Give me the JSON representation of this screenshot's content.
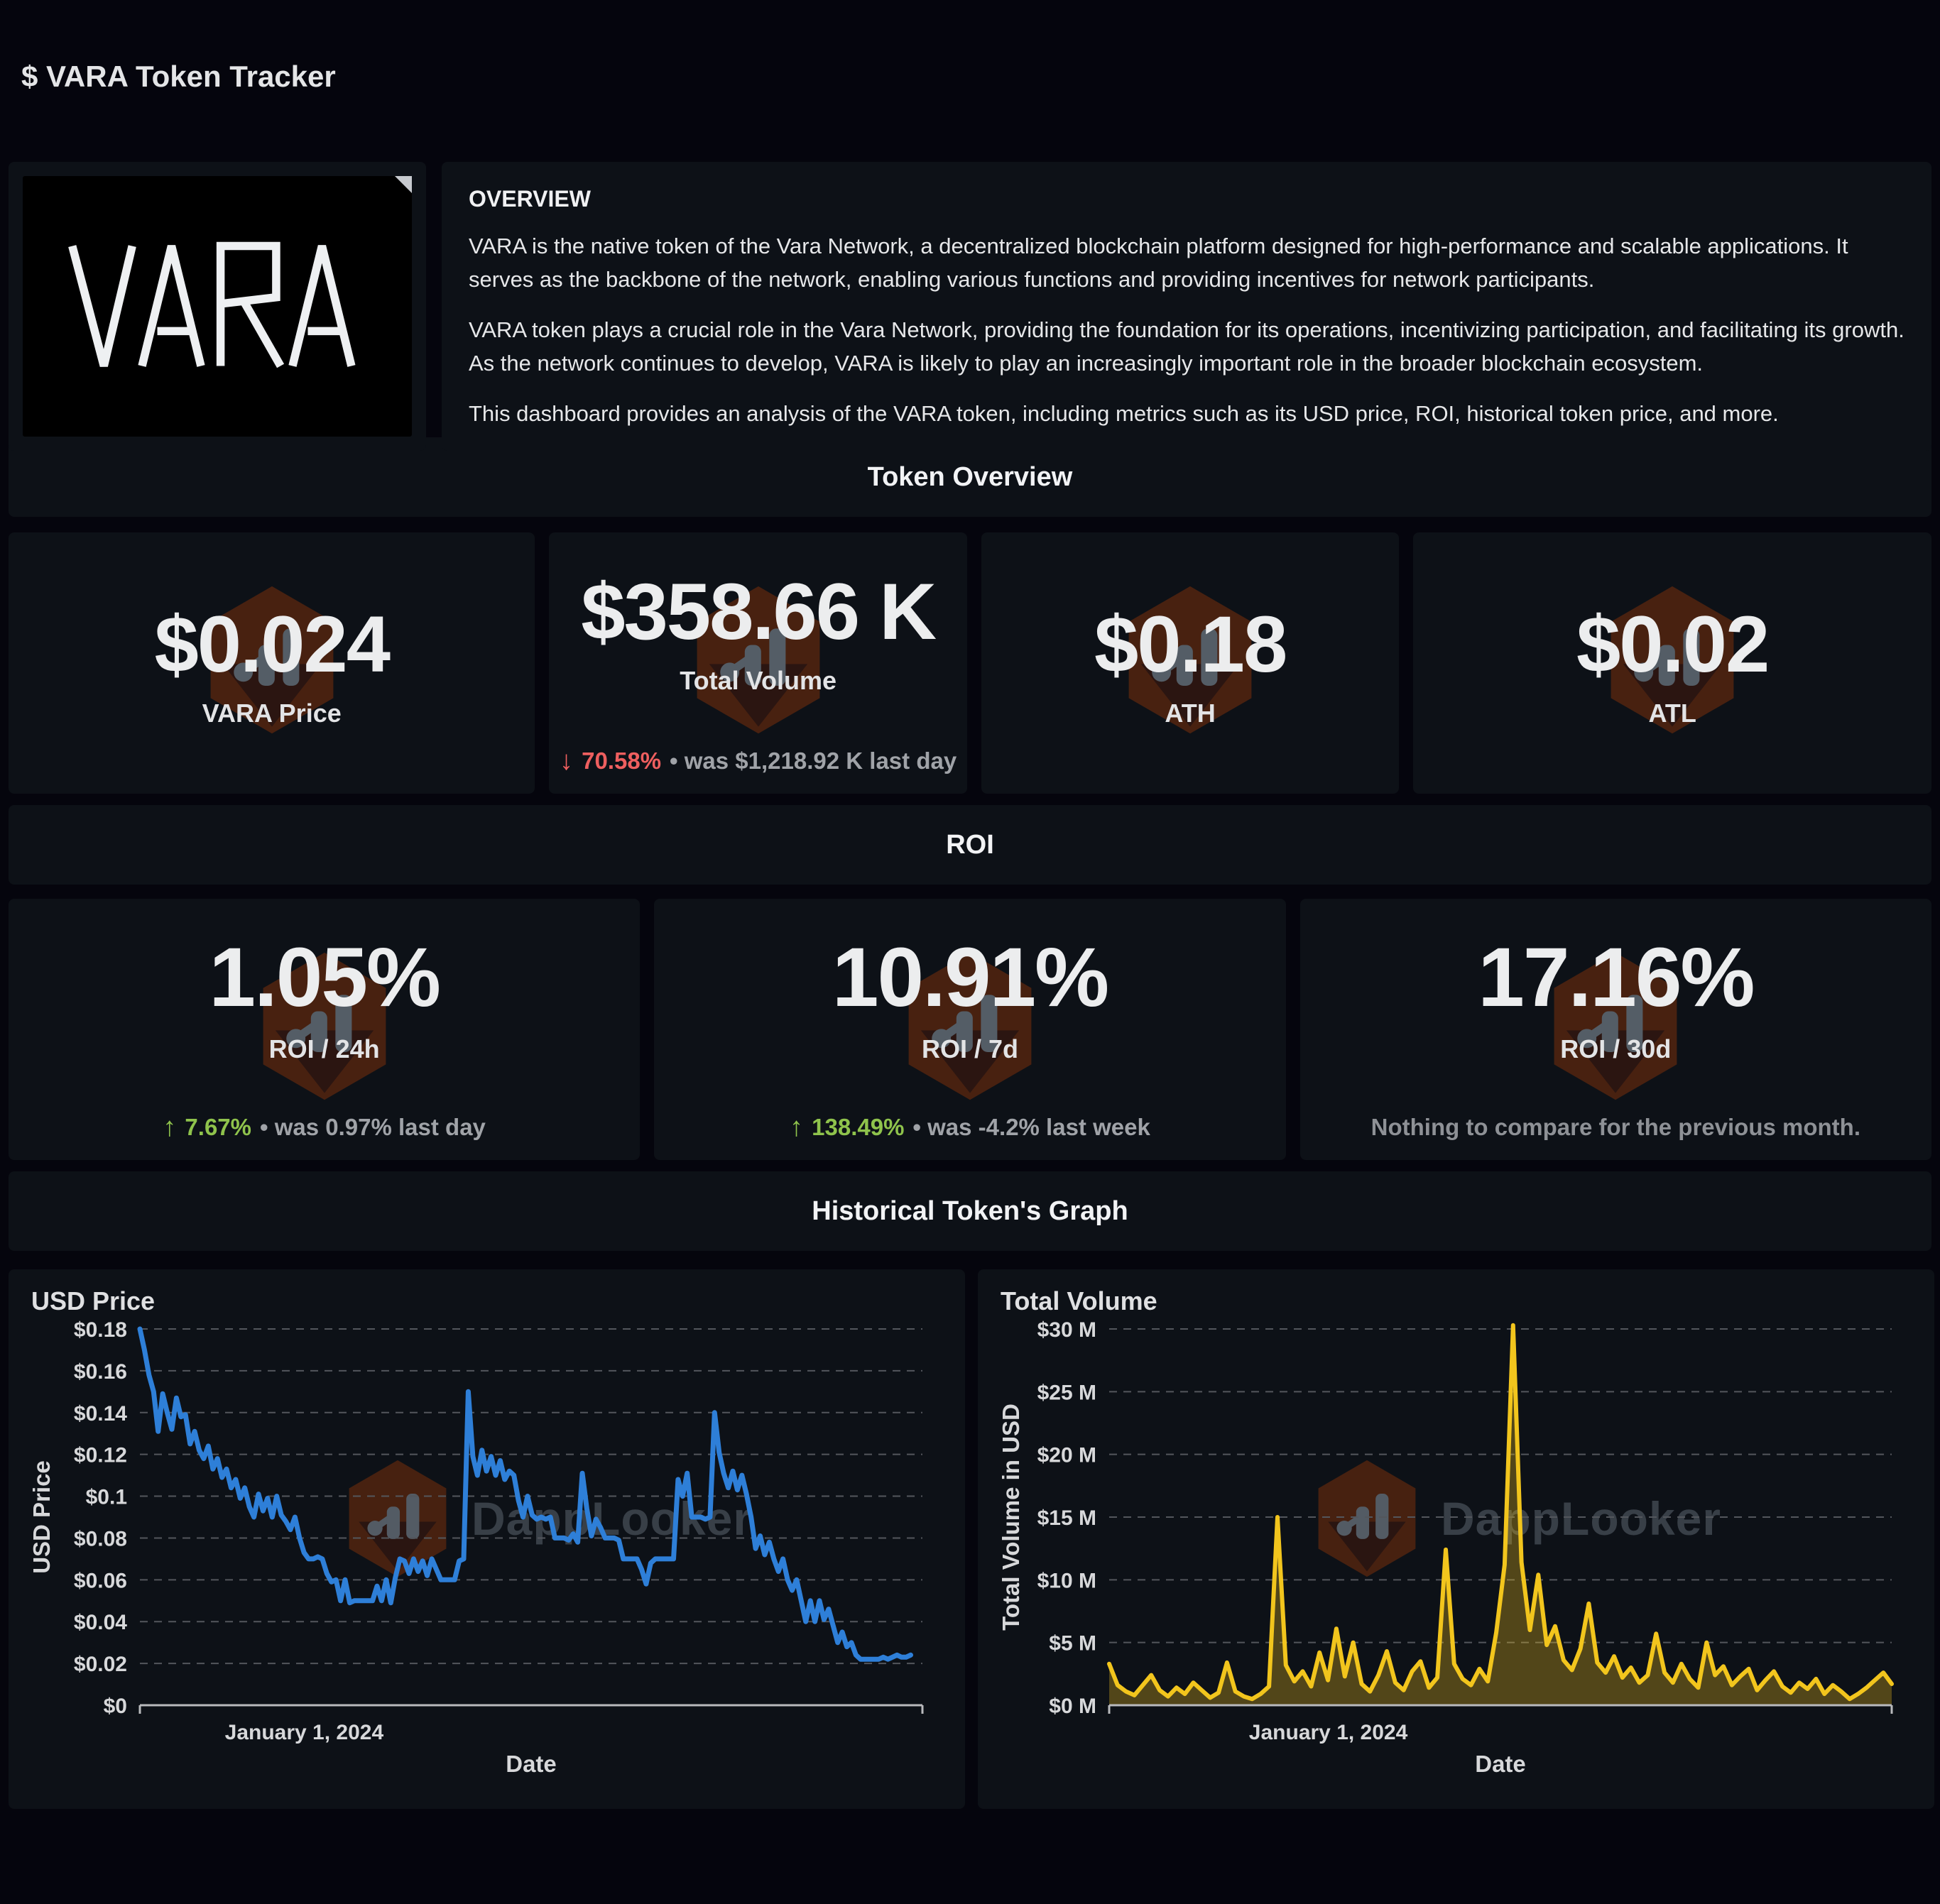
{
  "page": {
    "title": "$ VARA Token Tracker"
  },
  "logo": {
    "label": "VARA"
  },
  "overview": {
    "heading": "OVERVIEW",
    "paragraphs": [
      "VARA is the native token of the Vara Network, a decentralized blockchain platform designed for high-performance and scalable applications. It serves as the backbone of the network, enabling various functions and providing incentives for network participants.",
      "VARA token plays a crucial role in the Vara Network, providing the foundation for its operations, incentivizing participation, and facilitating its growth. As the network continues to develop, VARA is likely to play an increasingly important role in the broader blockchain ecosystem.",
      "This dashboard provides an analysis of the VARA token, including metrics such as its USD price, ROI, historical token price, and more."
    ]
  },
  "sections": {
    "token_overview": "Token Overview",
    "roi": "ROI",
    "historical": "Historical Token's Graph"
  },
  "stats": [
    {
      "value": "$0.024",
      "label": "VARA Price"
    },
    {
      "value": "$358.66 K",
      "label": "Total Volume",
      "delta": {
        "direction": "down",
        "arrow": "↓",
        "percent": "70.58%",
        "rest": "• was $1,218.92 K  last day"
      }
    },
    {
      "value": "$0.18",
      "label": "ATH"
    },
    {
      "value": "$0.02",
      "label": "ATL"
    }
  ],
  "roi_cards": [
    {
      "value": "1.05%",
      "label": "ROI / 24h",
      "delta": {
        "direction": "up",
        "arrow": "↑",
        "percent": "7.67%",
        "rest": "• was 0.97%  last day"
      }
    },
    {
      "value": "10.91%",
      "label": "ROI / 7d",
      "delta": {
        "direction": "up",
        "arrow": "↑",
        "percent": "138.49%",
        "rest": "• was -4.2%  last week"
      }
    },
    {
      "value": "17.16%",
      "label": "ROI / 30d",
      "note": "Nothing to compare for the previous month."
    }
  ],
  "watermark": {
    "text": "DappLooker"
  },
  "colors": {
    "page_bg": "#05050d",
    "card_bg": "#0d1117",
    "accent_red": "#ee5f5f",
    "accent_green": "#8fc34c",
    "price_line": "#2e7fd8",
    "volume_line": "#f2c51d",
    "grid_line": "#53565c",
    "axis_line": "#b9babd"
  },
  "chart_data": [
    {
      "type": "line",
      "title": "USD Price",
      "ylabel": "USD Price",
      "xlabel": "Date",
      "x_tick_label": "January 1, 2024",
      "x_tick_frac": 0.21,
      "grid": "dashed horizontal",
      "legend_position": "none",
      "ylim": [
        0,
        0.18
      ],
      "y_tick_values": [
        0,
        0.02,
        0.04,
        0.06,
        0.08,
        0.1,
        0.12,
        0.14,
        0.16,
        0.18
      ],
      "y_tick_labels": [
        "$0",
        "$0.02",
        "$0.04",
        "$0.06",
        "$0.08",
        "$0.1",
        "$0.12",
        "$0.14",
        "$0.16",
        "$0.18"
      ],
      "line_color": "#2e7fd8",
      "line_width": 7,
      "fill_opacity": 0,
      "end_frac": 0.985,
      "series": [
        {
          "name": "USD Price",
          "values": [
            0.18,
            0.17,
            0.158,
            0.15,
            0.131,
            0.149,
            0.14,
            0.132,
            0.147,
            0.138,
            0.139,
            0.125,
            0.131,
            0.122,
            0.118,
            0.124,
            0.113,
            0.118,
            0.109,
            0.113,
            0.104,
            0.108,
            0.099,
            0.104,
            0.095,
            0.09,
            0.101,
            0.093,
            0.099,
            0.09,
            0.1,
            0.091,
            0.088,
            0.084,
            0.09,
            0.08,
            0.073,
            0.07,
            0.07,
            0.071,
            0.07,
            0.063,
            0.059,
            0.06,
            0.05,
            0.06,
            0.049,
            0.05,
            0.05,
            0.05,
            0.05,
            0.05,
            0.057,
            0.05,
            0.06,
            0.049,
            0.061,
            0.07,
            0.069,
            0.063,
            0.07,
            0.064,
            0.069,
            0.062,
            0.07,
            0.065,
            0.06,
            0.06,
            0.06,
            0.06,
            0.069,
            0.07,
            0.15,
            0.119,
            0.11,
            0.122,
            0.112,
            0.119,
            0.11,
            0.117,
            0.108,
            0.112,
            0.11,
            0.098,
            0.09,
            0.1,
            0.091,
            0.089,
            0.09,
            0.089,
            0.09,
            0.08,
            0.08,
            0.08,
            0.079,
            0.082,
            0.078,
            0.111,
            0.094,
            0.081,
            0.089,
            0.085,
            0.08,
            0.08,
            0.08,
            0.079,
            0.07,
            0.07,
            0.07,
            0.07,
            0.065,
            0.058,
            0.068,
            0.07,
            0.07,
            0.07,
            0.07,
            0.07,
            0.108,
            0.1,
            0.111,
            0.09,
            0.09,
            0.09,
            0.089,
            0.09,
            0.14,
            0.121,
            0.111,
            0.104,
            0.112,
            0.103,
            0.11,
            0.101,
            0.09,
            0.075,
            0.081,
            0.072,
            0.078,
            0.07,
            0.064,
            0.07,
            0.06,
            0.055,
            0.06,
            0.05,
            0.04,
            0.05,
            0.04,
            0.05,
            0.041,
            0.046,
            0.038,
            0.03,
            0.035,
            0.028,
            0.03,
            0.024,
            0.022,
            0.022,
            0.022,
            0.022,
            0.022,
            0.023,
            0.022,
            0.023,
            0.024,
            0.023,
            0.023,
            0.024
          ]
        }
      ]
    },
    {
      "type": "area",
      "title": "Total Volume",
      "ylabel": "Total Volume in USD",
      "xlabel": "Date",
      "x_tick_label": "January 1, 2024",
      "x_tick_frac": 0.28,
      "grid": "dashed horizontal",
      "legend_position": "none",
      "ylim": [
        0,
        30
      ],
      "unit": "million USD",
      "y_tick_values": [
        0,
        5,
        10,
        15,
        20,
        25,
        30
      ],
      "y_tick_labels": [
        "$0 M",
        "$5 M",
        "$10 M",
        "$15 M",
        "$20 M",
        "$25 M",
        "$30 M"
      ],
      "line_color": "#f2c51d",
      "line_width": 6,
      "fill_opacity": 0.3,
      "end_frac": 1.0,
      "series": [
        {
          "name": "Total Volume",
          "values": [
            3.3,
            1.6,
            1.1,
            0.8,
            1.6,
            2.4,
            1.2,
            0.7,
            1.4,
            0.9,
            1.8,
            1.2,
            0.6,
            1.0,
            3.4,
            1.1,
            0.7,
            0.5,
            0.9,
            1.5,
            15.0,
            3.2,
            1.9,
            2.7,
            1.5,
            4.2,
            2.0,
            6.1,
            2.3,
            5.0,
            1.7,
            1.1,
            2.4,
            4.3,
            1.8,
            1.2,
            2.7,
            3.5,
            1.4,
            2.2,
            12.4,
            3.3,
            2.1,
            1.6,
            2.9,
            1.9,
            5.8,
            11.2,
            30.3,
            11.4,
            6.0,
            10.4,
            4.8,
            6.3,
            3.6,
            2.8,
            4.5,
            8.1,
            3.4,
            2.6,
            3.9,
            2.2,
            3.0,
            1.8,
            2.4,
            5.7,
            2.6,
            1.8,
            3.3,
            2.1,
            1.4,
            5.0,
            2.4,
            3.1,
            1.6,
            2.3,
            2.9,
            1.2,
            2.0,
            2.7,
            1.5,
            1.0,
            1.8,
            1.3,
            2.1,
            0.9,
            1.6,
            1.1,
            0.5,
            0.9,
            1.4,
            2.0,
            2.6,
            1.7
          ]
        }
      ]
    }
  ]
}
